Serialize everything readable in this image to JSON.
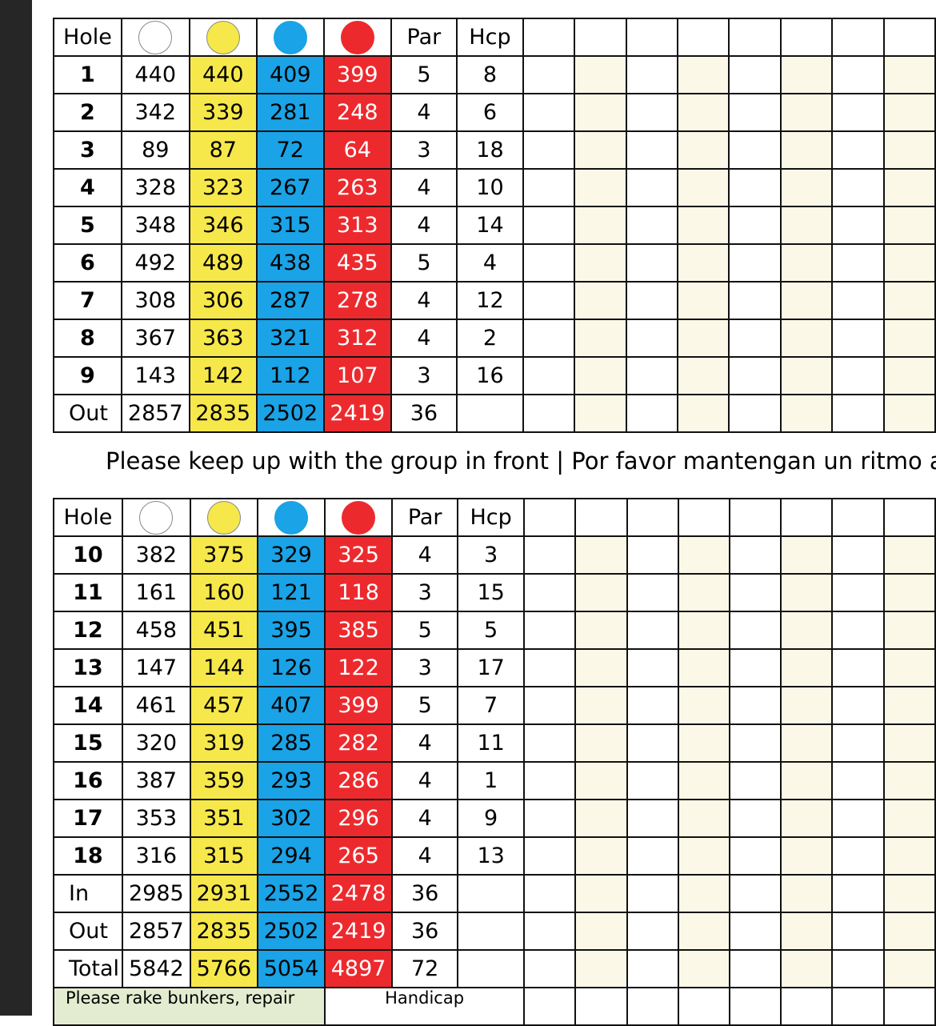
{
  "labels": {
    "hole": "Hole",
    "par": "Par",
    "hcp": "Hcp",
    "out": "Out",
    "in": "In",
    "total": "Total",
    "pace_note": "Please keep up with the group in front | Por favor mantengan un ritmo ap",
    "rake_note": "Please rake bunkers, repair",
    "handicap": "Handicap"
  },
  "tee_colors": {
    "white": "#ffffff",
    "yellow": "#f6e84a",
    "blue": "#1aa3e6",
    "red": "#ec2a2e"
  },
  "front_nine": [
    {
      "hole": "1",
      "white": "440",
      "yellow": "440",
      "blue": "409",
      "red": "399",
      "par": "5",
      "hcp": "8"
    },
    {
      "hole": "2",
      "white": "342",
      "yellow": "339",
      "blue": "281",
      "red": "248",
      "par": "4",
      "hcp": "6"
    },
    {
      "hole": "3",
      "white": "89",
      "yellow": "87",
      "blue": "72",
      "red": "64",
      "par": "3",
      "hcp": "18"
    },
    {
      "hole": "4",
      "white": "328",
      "yellow": "323",
      "blue": "267",
      "red": "263",
      "par": "4",
      "hcp": "10"
    },
    {
      "hole": "5",
      "white": "348",
      "yellow": "346",
      "blue": "315",
      "red": "313",
      "par": "4",
      "hcp": "14"
    },
    {
      "hole": "6",
      "white": "492",
      "yellow": "489",
      "blue": "438",
      "red": "435",
      "par": "5",
      "hcp": "4"
    },
    {
      "hole": "7",
      "white": "308",
      "yellow": "306",
      "blue": "287",
      "red": "278",
      "par": "4",
      "hcp": "12"
    },
    {
      "hole": "8",
      "white": "367",
      "yellow": "363",
      "blue": "321",
      "red": "312",
      "par": "4",
      "hcp": "2"
    },
    {
      "hole": "9",
      "white": "143",
      "yellow": "142",
      "blue": "112",
      "red": "107",
      "par": "3",
      "hcp": "16"
    }
  ],
  "out_totals": {
    "white": "2857",
    "yellow": "2835",
    "blue": "2502",
    "red": "2419",
    "par": "36"
  },
  "back_nine": [
    {
      "hole": "10",
      "white": "382",
      "yellow": "375",
      "blue": "329",
      "red": "325",
      "par": "4",
      "hcp": "3"
    },
    {
      "hole": "11",
      "white": "161",
      "yellow": "160",
      "blue": "121",
      "red": "118",
      "par": "3",
      "hcp": "15"
    },
    {
      "hole": "12",
      "white": "458",
      "yellow": "451",
      "blue": "395",
      "red": "385",
      "par": "5",
      "hcp": "5"
    },
    {
      "hole": "13",
      "white": "147",
      "yellow": "144",
      "blue": "126",
      "red": "122",
      "par": "3",
      "hcp": "17"
    },
    {
      "hole": "14",
      "white": "461",
      "yellow": "457",
      "blue": "407",
      "red": "399",
      "par": "5",
      "hcp": "7"
    },
    {
      "hole": "15",
      "white": "320",
      "yellow": "319",
      "blue": "285",
      "red": "282",
      "par": "4",
      "hcp": "11"
    },
    {
      "hole": "16",
      "white": "387",
      "yellow": "359",
      "blue": "293",
      "red": "286",
      "par": "4",
      "hcp": "1"
    },
    {
      "hole": "17",
      "white": "353",
      "yellow": "351",
      "blue": "302",
      "red": "296",
      "par": "4",
      "hcp": "9"
    },
    {
      "hole": "18",
      "white": "316",
      "yellow": "315",
      "blue": "294",
      "red": "265",
      "par": "4",
      "hcp": "13"
    }
  ],
  "in_totals": {
    "white": "2985",
    "yellow": "2931",
    "blue": "2552",
    "red": "2478",
    "par": "36"
  },
  "grand_totals": {
    "white": "5842",
    "yellow": "5766",
    "blue": "5054",
    "red": "4897",
    "par": "72"
  }
}
